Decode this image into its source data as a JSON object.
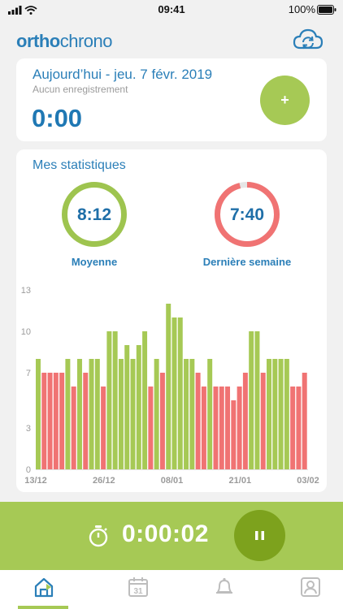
{
  "status_bar": {
    "time": "09:41",
    "battery": "100%"
  },
  "header": {
    "logo_part1": "ortho",
    "logo_part2": "chrono",
    "sync_icon": "cloud-sync-icon"
  },
  "today": {
    "title": "Aujourd’hui - jeu. 7 févr. 2019",
    "subtitle": "Aucun enregistrement",
    "value": "0:00",
    "add_label": "+"
  },
  "stats": {
    "title": "Mes statistiques",
    "average": {
      "value": "8:12",
      "label": "Moyenne"
    },
    "last_week": {
      "value": "7:40",
      "label": "Dernière semaine",
      "fraction": 0.96
    }
  },
  "colors": {
    "green": "#a6c955",
    "red": "#f07373",
    "blue": "#2b7fb8",
    "dark_green": "#7da21d"
  },
  "chart_data": {
    "type": "bar",
    "yticks": [
      0,
      3,
      7,
      10,
      13
    ],
    "ylim": [
      0,
      13
    ],
    "xtick_labels": [
      "13/12",
      "26/12",
      "08/01",
      "21/01",
      "03/02"
    ],
    "values": [
      8,
      7,
      7,
      7,
      7,
      8,
      6,
      8,
      7,
      8,
      8,
      6,
      10,
      10,
      8,
      9,
      8,
      9,
      10,
      6,
      8,
      7,
      12,
      11,
      11,
      8,
      8,
      7,
      6,
      8,
      6,
      6,
      6,
      5,
      6,
      7,
      10,
      10,
      7,
      8,
      8,
      8,
      8,
      6,
      6,
      7
    ],
    "colors": [
      "g",
      "r",
      "r",
      "r",
      "r",
      "g",
      "r",
      "g",
      "r",
      "g",
      "g",
      "r",
      "g",
      "g",
      "g",
      "g",
      "g",
      "g",
      "g",
      "r",
      "g",
      "r",
      "g",
      "g",
      "g",
      "g",
      "g",
      "r",
      "r",
      "g",
      "r",
      "r",
      "r",
      "r",
      "r",
      "r",
      "g",
      "g",
      "r",
      "g",
      "g",
      "g",
      "g",
      "r",
      "r",
      "r"
    ]
  },
  "timer": {
    "value": "0:00:02"
  },
  "tabs": [
    {
      "icon": "home-icon"
    },
    {
      "icon": "calendar-icon",
      "day": "31"
    },
    {
      "icon": "bell-icon"
    },
    {
      "icon": "profile-icon"
    }
  ]
}
